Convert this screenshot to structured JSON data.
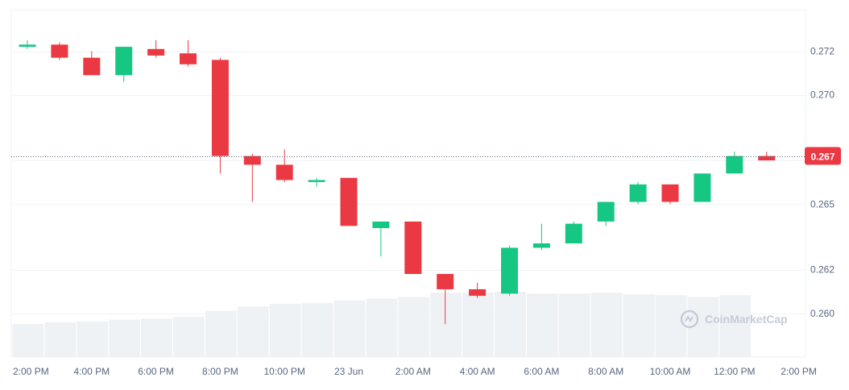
{
  "watermark": "CoinMarketCap",
  "current_price_label": "0.267",
  "colors": {
    "up": "#16c784",
    "down": "#ea3943",
    "grid": "#eff2f5",
    "volume": "#eff2f5",
    "axis_text": "#58667e",
    "badge": "#ea3943",
    "watermark": "#c5ccd6"
  },
  "chart_data": {
    "type": "candlestick",
    "y_ticks": [
      "0.260",
      "0.262",
      "0.265",
      "0.267",
      "0.270",
      "0.272"
    ],
    "x_tick_labels": [
      "2:00 PM",
      "4:00 PM",
      "6:00 PM",
      "8:00 PM",
      "10:00 PM",
      "23 Jun",
      "2:00 AM",
      "4:00 AM",
      "6:00 AM",
      "8:00 AM",
      "10:00 AM",
      "12:00 PM",
      "2:00 PM"
    ],
    "ylim": [
      0.258,
      0.2739
    ],
    "current_price": 0.2672,
    "grid": true,
    "candles": [
      {
        "time": "2:00 PM",
        "open": 0.2722,
        "high": 0.2725,
        "low": 0.2721,
        "close": 0.2723
      },
      {
        "time": "3:00 PM",
        "open": 0.2723,
        "high": 0.2724,
        "low": 0.2716,
        "close": 0.2717
      },
      {
        "time": "4:00 PM",
        "open": 0.2717,
        "high": 0.272,
        "low": 0.2709,
        "close": 0.2709
      },
      {
        "time": "5:00 PM",
        "open": 0.2709,
        "high": 0.2722,
        "low": 0.2706,
        "close": 0.2722
      },
      {
        "time": "6:00 PM",
        "open": 0.2721,
        "high": 0.2725,
        "low": 0.2717,
        "close": 0.2718
      },
      {
        "time": "7:00 PM",
        "open": 0.2719,
        "high": 0.2725,
        "low": 0.2713,
        "close": 0.2714
      },
      {
        "time": "8:00 PM",
        "open": 0.2716,
        "high": 0.2717,
        "low": 0.2664,
        "close": 0.2672
      },
      {
        "time": "9:00 PM",
        "open": 0.2672,
        "high": 0.2673,
        "low": 0.2651,
        "close": 0.2668
      },
      {
        "time": "10:00 PM",
        "open": 0.2668,
        "high": 0.2675,
        "low": 0.266,
        "close": 0.2661
      },
      {
        "time": "11:00 PM",
        "open": 0.2661,
        "high": 0.2662,
        "low": 0.2658,
        "close": 0.2661
      },
      {
        "time": "12:00 AM",
        "open": 0.2662,
        "high": 0.2662,
        "low": 0.264,
        "close": 0.264
      },
      {
        "time": "1:00 AM",
        "open": 0.2639,
        "high": 0.2642,
        "low": 0.2626,
        "close": 0.2642
      },
      {
        "time": "2:00 AM",
        "open": 0.2642,
        "high": 0.2642,
        "low": 0.2618,
        "close": 0.2618
      },
      {
        "time": "3:00 AM",
        "open": 0.2618,
        "high": 0.2618,
        "low": 0.2595,
        "close": 0.2611
      },
      {
        "time": "4:00 AM",
        "open": 0.2611,
        "high": 0.2614,
        "low": 0.2607,
        "close": 0.2608
      },
      {
        "time": "5:00 AM",
        "open": 0.2609,
        "high": 0.2631,
        "low": 0.2608,
        "close": 0.263
      },
      {
        "time": "6:00 AM",
        "open": 0.263,
        "high": 0.2641,
        "low": 0.2629,
        "close": 0.2632
      },
      {
        "time": "7:00 AM",
        "open": 0.2632,
        "high": 0.2642,
        "low": 0.2632,
        "close": 0.2641
      },
      {
        "time": "8:00 AM",
        "open": 0.2642,
        "high": 0.2651,
        "low": 0.264,
        "close": 0.2651
      },
      {
        "time": "9:00 AM",
        "open": 0.2651,
        "high": 0.266,
        "low": 0.265,
        "close": 0.2659
      },
      {
        "time": "10:00 AM",
        "open": 0.2659,
        "high": 0.2659,
        "low": 0.265,
        "close": 0.2651
      },
      {
        "time": "11:00 AM",
        "open": 0.2651,
        "high": 0.2664,
        "low": 0.2651,
        "close": 0.2664
      },
      {
        "time": "12:00 PM",
        "open": 0.2664,
        "high": 0.2674,
        "low": 0.2664,
        "close": 0.2672
      },
      {
        "time": "1:00 PM",
        "open": 0.2672,
        "high": 0.2674,
        "low": 0.267,
        "close": 0.267
      }
    ],
    "volume_relative": [
      0.38,
      0.4,
      0.41,
      0.43,
      0.44,
      0.46,
      0.53,
      0.58,
      0.61,
      0.62,
      0.65,
      0.67,
      0.69,
      0.74,
      0.74,
      0.75,
      0.73,
      0.73,
      0.74,
      0.72,
      0.71,
      0.69,
      0.71
    ]
  }
}
